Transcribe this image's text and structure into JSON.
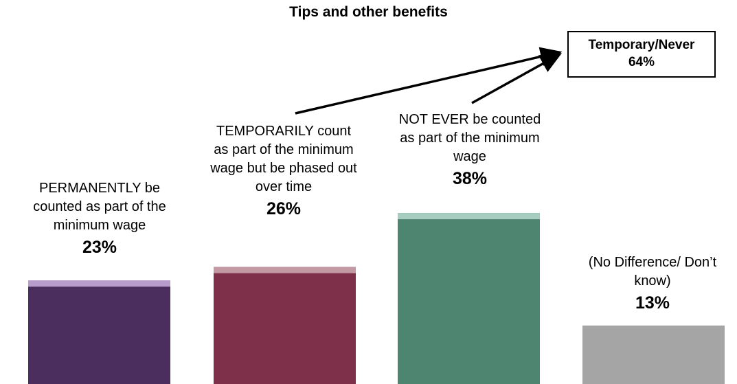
{
  "chart_data": {
    "type": "bar",
    "title": "Tips and other benefits",
    "categories": [
      "PERMANENTLY be counted as part of the minimum wage",
      "TEMPORARILY count as part of the minimum wage but be phased out over time",
      "NOT EVER be counted as part of the minimum wage",
      "(No Difference/ Don’t know)"
    ],
    "value_labels": [
      "23%",
      "26%",
      "38%",
      "13%"
    ],
    "values": [
      23,
      26,
      38,
      13
    ],
    "ylim": [
      0,
      40
    ],
    "colors": [
      "#4b2d5e",
      "#7e2f4a",
      "#4e8570",
      "#a5a5a5"
    ],
    "cap_colors": [
      "#b79ccc",
      "#c39aa4",
      "#a6cdbf",
      "#a5a5a5"
    ],
    "callout": {
      "title": "Temporary/Never",
      "value": "64%"
    }
  }
}
